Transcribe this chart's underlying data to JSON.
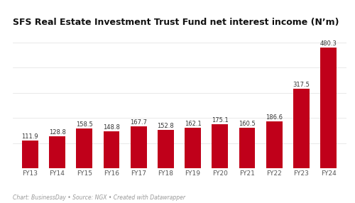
{
  "title": "SFS Real Estate Investment Trust Fund net interest income (N’m)",
  "categories": [
    "FY13",
    "FY14",
    "FY15",
    "FY16",
    "FY17",
    "FY18",
    "FY19",
    "FY20",
    "FY21",
    "FY22",
    "FY23",
    "FY24"
  ],
  "values": [
    111.9,
    128.8,
    158.5,
    148.8,
    167.7,
    152.8,
    162.1,
    175.1,
    160.5,
    186.6,
    317.5,
    480.3
  ],
  "bar_color": "#c0001a",
  "background_color": "#ffffff",
  "title_fontsize": 9.0,
  "label_fontsize": 6.0,
  "caption": "Chart: BusinessDay • Source: NGX • Created with Datawrapper",
  "caption_fontsize": 5.5,
  "ylim": [
    0,
    540
  ]
}
